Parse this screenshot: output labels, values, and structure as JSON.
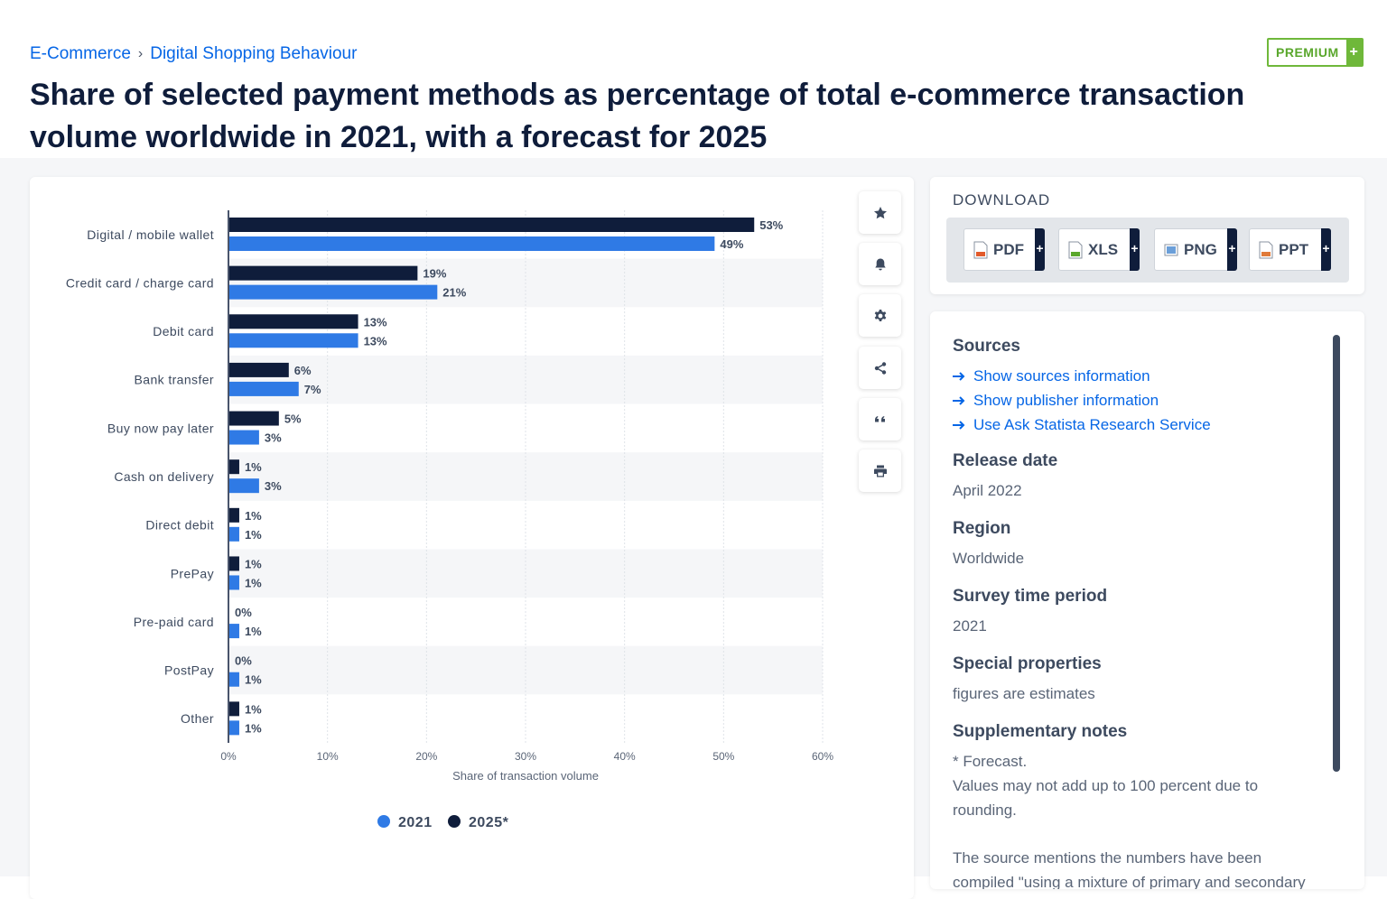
{
  "breadcrumb": {
    "items": [
      "E-Commerce",
      "Digital Shopping Behaviour"
    ],
    "separator": "›"
  },
  "premium": {
    "label": "PREMIUM",
    "plus": "+"
  },
  "title": "Share of selected payment methods as percentage of total e-commerce transaction volume worldwide in 2021, with a forecast for 2025",
  "toolbar": {
    "icons": [
      "star-icon",
      "bell-icon",
      "gear-icon",
      "share-icon",
      "quote-icon",
      "print-icon"
    ]
  },
  "download": {
    "title": "DOWNLOAD",
    "formats": [
      {
        "label": "PDF",
        "plus": "+"
      },
      {
        "label": "XLS",
        "plus": "+"
      },
      {
        "label": "PNG",
        "plus": "+"
      },
      {
        "label": "PPT",
        "plus": "+"
      }
    ]
  },
  "info": {
    "sources_heading": "Sources",
    "links": [
      "Show sources information",
      "Show publisher information",
      "Use Ask Statista Research Service"
    ],
    "release_heading": "Release date",
    "release_value": "April 2022",
    "region_heading": "Region",
    "region_value": "Worldwide",
    "period_heading": "Survey time period",
    "period_value": "2021",
    "special_heading": "Special properties",
    "special_value": "figures are estimates",
    "notes_heading": "Supplementary notes",
    "notes_line1": "* Forecast.",
    "notes_line2": "Values may not add up to 100 percent due to rounding.",
    "notes_line3": "The source mentions the numbers have been compiled \"using a mixture of primary and secondary data sources. Primary surf..."
  },
  "colors": {
    "s2021": "#2f7ae5",
    "s2025": "#0f1d3b",
    "accent": "#0666e6",
    "premium": "#6fb83a"
  },
  "chart_data": {
    "type": "bar",
    "orientation": "horizontal",
    "categories": [
      "Digital / mobile wallet",
      "Credit card / charge card",
      "Debit card",
      "Bank transfer",
      "Buy now pay later",
      "Cash on delivery",
      "Direct debit",
      "PrePay",
      "Pre-paid card",
      "PostPay",
      "Other"
    ],
    "series": [
      {
        "name": "2025*",
        "values": [
          53,
          19,
          13,
          6,
          5,
          1,
          1,
          1,
          0,
          0,
          1
        ],
        "color": "#0f1d3b"
      },
      {
        "name": "2021",
        "values": [
          49,
          21,
          13,
          7,
          3,
          3,
          1,
          1,
          1,
          1,
          1
        ],
        "color": "#2f7ae5"
      }
    ],
    "legend_order": [
      "2021",
      "2025*"
    ],
    "xlabel": "Share of transaction volume",
    "xlim": [
      0,
      60
    ],
    "xticks": [
      0,
      10,
      20,
      30,
      40,
      50,
      60
    ],
    "tick_suffix": "%",
    "value_suffix": "%",
    "grid": true,
    "legend_position": "bottom"
  }
}
